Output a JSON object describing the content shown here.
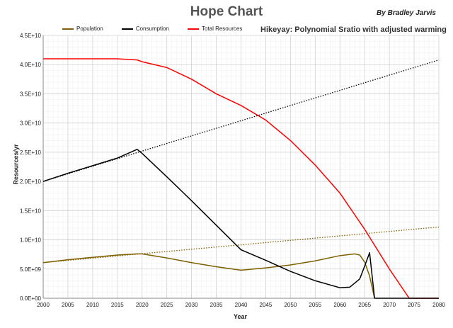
{
  "chart_data": {
    "type": "line",
    "title": "Hope Chart",
    "author": "By Bradley Jarvis",
    "subtitle": "Hikeyay: Polynomial Sratio with adjusted warming",
    "xlabel": "Year",
    "ylabel": "Resources/yr",
    "xlim": [
      2000,
      2080
    ],
    "ylim": [
      0,
      45000000000
    ],
    "x_ticks": [
      "2000",
      "2005",
      "2010",
      "2015",
      "2020",
      "2025",
      "2030",
      "2035",
      "2040",
      "2045",
      "2050",
      "2055",
      "2060",
      "2065",
      "2070",
      "2075",
      "2080"
    ],
    "y_ticks": [
      "0.0E+00",
      "5.0E+09",
      "1.0E+10",
      "1.5E+10",
      "2.0E+10",
      "2.5E+10",
      "3.0E+10",
      "3.5E+10",
      "4.0E+10",
      "4.5E+10"
    ],
    "grid": true,
    "legend_position": "top-left",
    "series": [
      {
        "name": "Population",
        "color": "#7f6000",
        "style": "solid",
        "points": [
          [
            2000,
            6100000000.0
          ],
          [
            2005,
            6600000000.0
          ],
          [
            2010,
            7000000000.0
          ],
          [
            2015,
            7400000000.0
          ],
          [
            2019,
            7600000000.0
          ],
          [
            2020,
            7600000000.0
          ],
          [
            2025,
            6900000000.0
          ],
          [
            2030,
            6100000000.0
          ],
          [
            2035,
            5400000000.0
          ],
          [
            2040,
            4800000000.0
          ],
          [
            2045,
            5200000000.0
          ],
          [
            2050,
            5700000000.0
          ],
          [
            2055,
            6400000000.0
          ],
          [
            2060,
            7300000000.0
          ],
          [
            2063,
            7600000000.0
          ],
          [
            2064,
            7400000000.0
          ],
          [
            2065,
            6200000000.0
          ],
          [
            2066,
            3800000000.0
          ],
          [
            2067,
            0
          ]
        ]
      },
      {
        "name": "Consumption",
        "color": "#000000",
        "style": "solid",
        "points": [
          [
            2000,
            20000000000.0
          ],
          [
            2005,
            21400000000.0
          ],
          [
            2010,
            22700000000.0
          ],
          [
            2015,
            24000000000.0
          ],
          [
            2019,
            25500000000.0
          ],
          [
            2020,
            24800000000.0
          ],
          [
            2025,
            20800000000.0
          ],
          [
            2030,
            16700000000.0
          ],
          [
            2035,
            12500000000.0
          ],
          [
            2040,
            8300000000.0
          ],
          [
            2045,
            6500000000.0
          ],
          [
            2050,
            4600000000.0
          ],
          [
            2055,
            3000000000.0
          ],
          [
            2060,
            1800000000.0
          ],
          [
            2062,
            1900000000.0
          ],
          [
            2064,
            3300000000.0
          ],
          [
            2065,
            5500000000.0
          ],
          [
            2066,
            7800000000.0
          ],
          [
            2067,
            0
          ],
          [
            2080,
            0
          ]
        ]
      },
      {
        "name": "Total Resources",
        "color": "#ff0000",
        "style": "solid",
        "points": [
          [
            2000,
            41000000000.0
          ],
          [
            2005,
            41000000000.0
          ],
          [
            2010,
            41000000000.0
          ],
          [
            2015,
            41000000000.0
          ],
          [
            2019,
            40800000000.0
          ],
          [
            2020,
            40500000000.0
          ],
          [
            2025,
            39500000000.0
          ],
          [
            2030,
            37500000000.0
          ],
          [
            2035,
            35000000000.0
          ],
          [
            2040,
            33000000000.0
          ],
          [
            2045,
            30500000000.0
          ],
          [
            2050,
            27000000000.0
          ],
          [
            2055,
            22800000000.0
          ],
          [
            2060,
            18000000000.0
          ],
          [
            2065,
            11800000000.0
          ],
          [
            2070,
            5000000000.0
          ],
          [
            2074,
            0
          ],
          [
            2080,
            0
          ]
        ]
      },
      {
        "name": "",
        "color": "#000000",
        "style": "dotted",
        "points": [
          [
            2000,
            20000000000.0
          ],
          [
            2080,
            40800000000.0
          ]
        ]
      },
      {
        "name": "",
        "color": "#7f6000",
        "style": "dotted",
        "points": [
          [
            2000,
            6100000000.0
          ],
          [
            2080,
            12200000000.0
          ]
        ]
      }
    ]
  }
}
